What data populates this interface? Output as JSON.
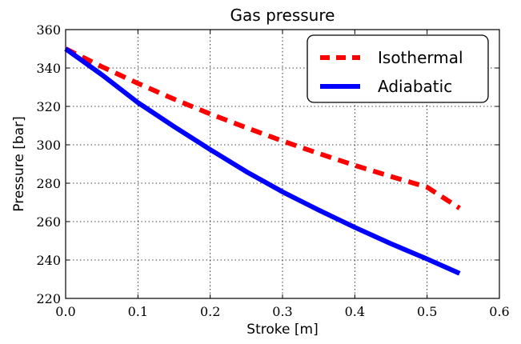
{
  "chart_data": {
    "type": "line",
    "title": "Gas pressure",
    "xlabel": "Stroke [m]",
    "ylabel": "Pressure [bar]",
    "xlim": [
      0.0,
      0.6
    ],
    "ylim": [
      220,
      360
    ],
    "xticks": [
      0.0,
      0.1,
      0.2,
      0.3,
      0.4,
      0.5,
      0.6
    ],
    "xtick_labels": [
      "0.0",
      "0.1",
      "0.2",
      "0.3",
      "0.4",
      "0.5",
      "0.6"
    ],
    "yticks": [
      220,
      240,
      260,
      280,
      300,
      320,
      340,
      360
    ],
    "ytick_labels": [
      "220",
      "240",
      "260",
      "280",
      "300",
      "320",
      "340",
      "360"
    ],
    "grid": true,
    "legend_position": "top-right",
    "series": [
      {
        "name": "Isothermal",
        "style": "dashed",
        "color": "#ff0000",
        "x": [
          0.0,
          0.05,
          0.1,
          0.15,
          0.2,
          0.25,
          0.3,
          0.35,
          0.4,
          0.45,
          0.5,
          0.545
        ],
        "y": [
          350.0,
          340.7,
          332.0,
          323.8,
          316.1,
          308.9,
          302.0,
          295.5,
          289.3,
          283.5,
          277.9,
          267.0
        ]
      },
      {
        "name": "Adiabatic",
        "style": "solid",
        "color": "#0000ff",
        "x": [
          0.0,
          0.05,
          0.1,
          0.15,
          0.2,
          0.25,
          0.3,
          0.35,
          0.4,
          0.45,
          0.5,
          0.545
        ],
        "y": [
          350.0,
          336.5,
          322.0,
          309.5,
          297.5,
          286.0,
          275.5,
          266.0,
          257.0,
          248.5,
          240.5,
          233.0
        ]
      }
    ]
  }
}
